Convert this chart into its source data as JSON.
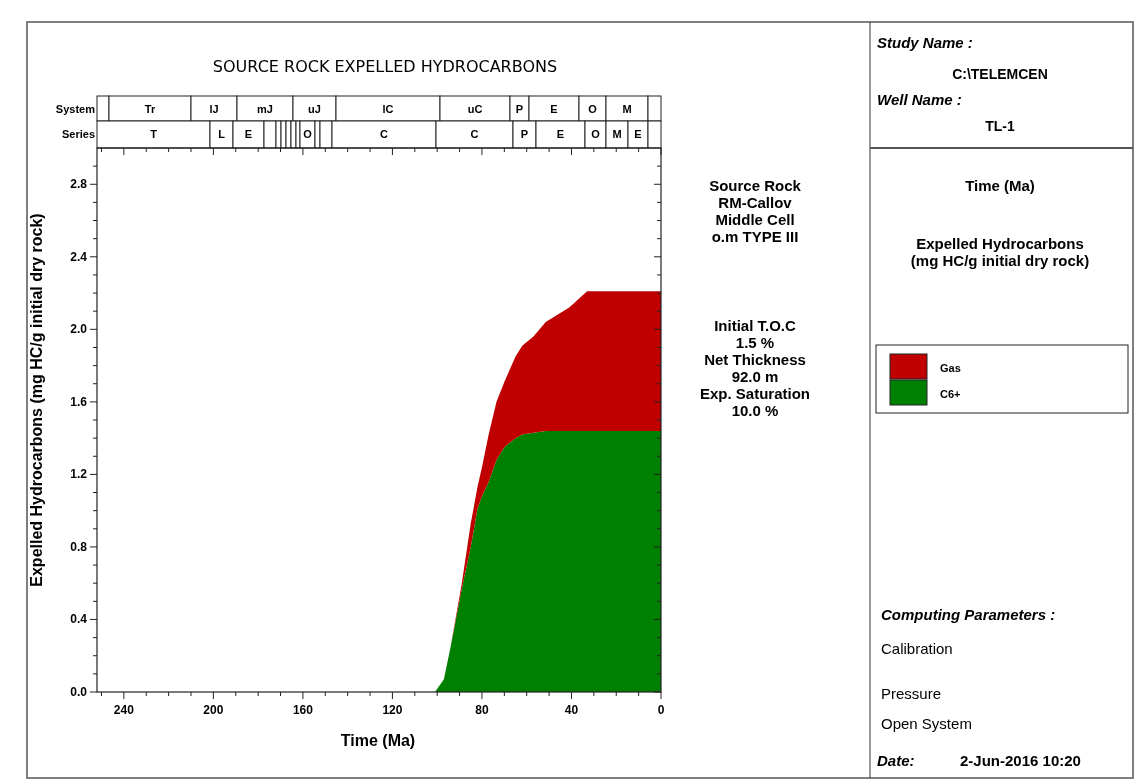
{
  "chart_data": {
    "type": "area",
    "title": "SOURCE ROCK EXPELLED HYDROCARBONS",
    "xlabel": "Time (Ma)",
    "ylabel": "Expelled Hydrocarbons (mg HC/g initial dry rock)",
    "x": [
      101,
      97,
      94,
      89,
      85,
      82,
      80,
      77,
      73.5,
      70,
      65,
      62,
      57,
      51.5,
      41,
      33,
      0
    ],
    "stacked": true,
    "series": [
      {
        "name": "C6+",
        "color": "#008000",
        "values": [
          0,
          0.07,
          0.25,
          0.57,
          0.8,
          1.01,
          1.08,
          1.16,
          1.28,
          1.35,
          1.4,
          1.42,
          1.43,
          1.44,
          1.44,
          1.44,
          1.44
        ]
      },
      {
        "name": "Gas",
        "color": "#c00000",
        "values": [
          0,
          0,
          0,
          0.03,
          0.13,
          0.12,
          0.16,
          0.26,
          0.32,
          0.36,
          0.45,
          0.49,
          0.53,
          0.6,
          0.68,
          0.77,
          0.77
        ]
      }
    ],
    "xlim": [
      252,
      0
    ],
    "ylim": [
      0,
      3
    ],
    "xticks": [
      {
        "value": 250,
        "label": null
      },
      240,
      {
        "value": 230,
        "label": null
      },
      {
        "value": 220,
        "label": null
      },
      {
        "value": 210,
        "label": null
      },
      200,
      {
        "value": 190,
        "label": null
      },
      {
        "value": 180,
        "label": null
      },
      {
        "value": 170,
        "label": null
      },
      160,
      {
        "value": 150,
        "label": null
      },
      {
        "value": 140,
        "label": null
      },
      {
        "value": 130,
        "label": null
      },
      120,
      {
        "value": 110,
        "label": null
      },
      {
        "value": 100,
        "label": null
      },
      {
        "value": 90,
        "label": null
      },
      80,
      {
        "value": 70,
        "label": null
      },
      {
        "value": 60,
        "label": null
      },
      {
        "value": 50,
        "label": null
      },
      40,
      {
        "value": 30,
        "label": null
      },
      {
        "value": 20,
        "label": null
      },
      {
        "value": 10,
        "label": null
      },
      0
    ],
    "yticks": [
      {
        "value": 0,
        "label": "0.0"
      },
      {
        "value": 0.1,
        "label": null
      },
      {
        "value": 0.2,
        "label": null
      },
      {
        "value": 0.3,
        "label": null
      },
      0.4,
      {
        "value": 0.5,
        "label": null
      },
      {
        "value": 0.6,
        "label": null
      },
      {
        "value": 0.7,
        "label": null
      },
      0.8,
      {
        "value": 0.9,
        "label": null
      },
      {
        "value": 1,
        "label": null
      },
      {
        "value": 1.1,
        "label": null
      },
      1.2,
      {
        "value": 1.3,
        "label": null
      },
      {
        "value": 1.4,
        "label": null
      },
      {
        "value": 1.5,
        "label": null
      },
      1.6,
      {
        "value": 1.7,
        "label": null
      },
      {
        "value": 1.8,
        "label": null
      },
      {
        "value": 1.9,
        "label": null
      },
      {
        "value": 2,
        "label": "2.0"
      },
      {
        "value": 2.1,
        "label": null
      },
      {
        "value": 2.2,
        "label": null
      },
      {
        "value": 2.3,
        "label": null
      },
      2.4,
      {
        "value": 2.5,
        "label": null
      },
      {
        "value": 2.6,
        "label": null
      },
      {
        "value": 2.7,
        "label": null
      },
      2.8,
      {
        "value": 2.9,
        "label": null
      }
    ],
    "legend": "right",
    "annotations": [
      "System",
      "Series",
      "Tr",
      "lJ",
      "mJ",
      "uJ",
      "lC",
      "uC",
      "P",
      "E",
      "O",
      "M",
      "T",
      "L",
      "E",
      "O",
      "C",
      "C",
      "P",
      "E",
      "O",
      "M",
      "E",
      "Source Rock\nRM-Callov\nMiddle Cell\no.m TYPE III",
      "Initial T.O.C\n1.5 %\nNet Thickness\n92.0 m\nExp. Saturation\n10.0 %",
      "Study Name :",
      "C:\\TELEMCEN",
      "Well Name :",
      "TL-1",
      "Time (Ma)",
      "Expelled Hydrocarbons\n(mg HC/g initial dry rock)",
      "Computing Parameters :",
      "Calibration",
      "Pressure",
      "Open System",
      "Date:",
      "2-Jun-2016  10:20"
    ]
  }
}
